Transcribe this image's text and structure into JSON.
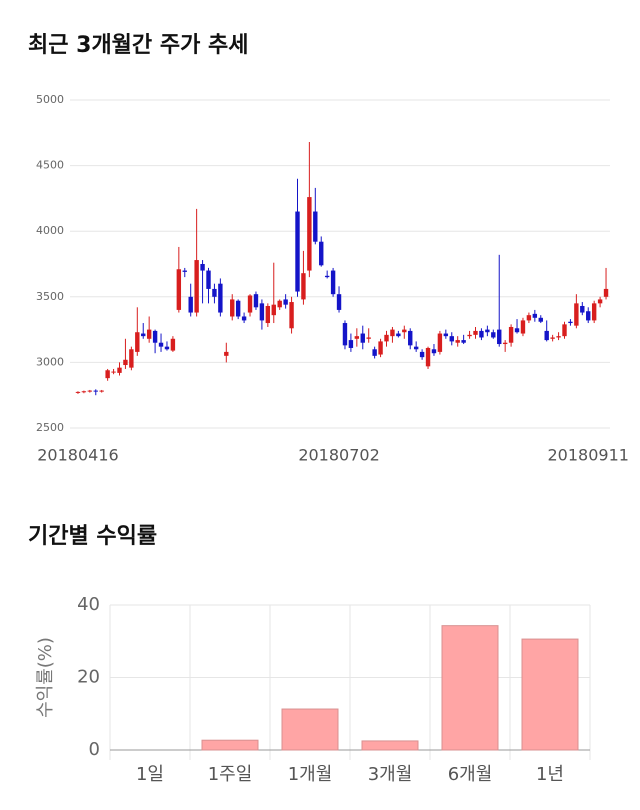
{
  "chart_data": [
    {
      "type": "candlestick",
      "title": "최근 3개월간 주가 추세",
      "up_color": "#d81e1e",
      "down_color": "#1414c8",
      "ylim": [
        2500,
        5000
      ],
      "yticks": [
        2500,
        3000,
        3500,
        4000,
        4500,
        5000
      ],
      "grid": true,
      "categories": [
        "20180416",
        null,
        null,
        null,
        null,
        null,
        null,
        null,
        null,
        null,
        null,
        null,
        null,
        null,
        null,
        null,
        null,
        null,
        null,
        null,
        null,
        null,
        null,
        null,
        null,
        null,
        null,
        null,
        null,
        null,
        null,
        null,
        null,
        null,
        null,
        null,
        null,
        null,
        null,
        null,
        null,
        null,
        null,
        null,
        "20180702",
        null,
        null,
        null,
        null,
        null,
        null,
        null,
        null,
        null,
        null,
        null,
        null,
        null,
        null,
        null,
        null,
        null,
        null,
        null,
        null,
        null,
        null,
        null,
        null,
        null,
        null,
        null,
        null,
        null,
        null,
        null,
        null,
        null,
        null,
        null,
        null,
        null,
        null,
        null,
        null,
        null,
        "20180911",
        null,
        null,
        null
      ],
      "candles": [
        [
          2770,
          2780,
          2760,
          2775
        ],
        [
          2775,
          2785,
          2765,
          2780
        ],
        [
          2780,
          2790,
          2770,
          2785
        ],
        [
          2785,
          2795,
          2750,
          2780
        ],
        [
          2780,
          2790,
          2770,
          2785
        ],
        [
          2880,
          2950,
          2860,
          2940
        ],
        [
          2930,
          2950,
          2910,
          2930
        ],
        [
          2920,
          3000,
          2900,
          2960
        ],
        [
          2980,
          3180,
          2950,
          3020
        ],
        [
          2960,
          3120,
          2940,
          3100
        ],
        [
          3080,
          3420,
          3050,
          3230
        ],
        [
          3220,
          3300,
          3180,
          3200
        ],
        [
          3180,
          3350,
          3150,
          3250
        ],
        [
          3240,
          3250,
          3070,
          3150
        ],
        [
          3150,
          3220,
          3080,
          3120
        ],
        [
          3120,
          3160,
          3090,
          3100
        ],
        [
          3090,
          3200,
          3080,
          3180
        ],
        [
          3400,
          3880,
          3380,
          3710
        ],
        [
          3700,
          3720,
          3650,
          3690
        ],
        [
          3500,
          3600,
          3350,
          3380
        ],
        [
          3380,
          4170,
          3350,
          3780
        ],
        [
          3750,
          3780,
          3450,
          3700
        ],
        [
          3700,
          3720,
          3450,
          3560
        ],
        [
          3560,
          3600,
          3450,
          3500
        ],
        [
          3600,
          3640,
          3350,
          3380
        ],
        [
          3050,
          3150,
          3000,
          3080
        ],
        [
          3350,
          3520,
          3320,
          3480
        ],
        [
          3470,
          3480,
          3330,
          3350
        ],
        [
          3350,
          3380,
          3300,
          3320
        ],
        [
          3380,
          3520,
          3350,
          3510
        ],
        [
          3520,
          3540,
          3400,
          3420
        ],
        [
          3450,
          3480,
          3250,
          3320
        ],
        [
          3300,
          3450,
          3270,
          3430
        ],
        [
          3360,
          3760,
          3300,
          3440
        ],
        [
          3420,
          3480,
          3400,
          3470
        ],
        [
          3480,
          3520,
          3410,
          3440
        ],
        [
          3260,
          3500,
          3220,
          3460
        ],
        [
          4150,
          4400,
          3500,
          3540
        ],
        [
          3480,
          3850,
          3440,
          3680
        ],
        [
          3700,
          4680,
          3650,
          4260
        ],
        [
          4150,
          4330,
          3900,
          3920
        ],
        [
          3920,
          3960,
          3730,
          3740
        ],
        [
          3660,
          3700,
          3640,
          3650
        ],
        [
          3700,
          3720,
          3500,
          3520
        ],
        [
          3520,
          3580,
          3380,
          3400
        ],
        [
          3300,
          3320,
          3100,
          3130
        ],
        [
          3170,
          3220,
          3080,
          3110
        ],
        [
          3180,
          3260,
          3120,
          3200
        ],
        [
          3220,
          3280,
          3100,
          3150
        ],
        [
          3180,
          3260,
          3150,
          3190
        ],
        [
          3100,
          3120,
          3030,
          3050
        ],
        [
          3060,
          3180,
          3040,
          3160
        ],
        [
          3160,
          3240,
          3120,
          3210
        ],
        [
          3200,
          3270,
          3150,
          3250
        ],
        [
          3220,
          3240,
          3190,
          3200
        ],
        [
          3230,
          3280,
          3180,
          3250
        ],
        [
          3240,
          3260,
          3100,
          3130
        ],
        [
          3120,
          3160,
          3080,
          3100
        ],
        [
          3080,
          3100,
          3020,
          3040
        ],
        [
          2970,
          3120,
          2950,
          3110
        ],
        [
          3100,
          3140,
          3050,
          3070
        ],
        [
          3080,
          3240,
          3060,
          3220
        ],
        [
          3220,
          3250,
          3180,
          3200
        ],
        [
          3200,
          3230,
          3130,
          3160
        ],
        [
          3150,
          3200,
          3120,
          3170
        ],
        [
          3170,
          3210,
          3140,
          3150
        ],
        [
          3200,
          3240,
          3180,
          3210
        ],
        [
          3210,
          3270,
          3180,
          3240
        ],
        [
          3240,
          3260,
          3170,
          3190
        ],
        [
          3250,
          3280,
          3200,
          3230
        ],
        [
          3230,
          3250,
          3180,
          3190
        ],
        [
          3250,
          3820,
          3120,
          3140
        ],
        [
          3140,
          3170,
          3080,
          3150
        ],
        [
          3150,
          3290,
          3120,
          3270
        ],
        [
          3260,
          3330,
          3220,
          3230
        ],
        [
          3220,
          3340,
          3200,
          3320
        ],
        [
          3320,
          3380,
          3300,
          3360
        ],
        [
          3370,
          3400,
          3310,
          3340
        ],
        [
          3340,
          3360,
          3300,
          3310
        ],
        [
          3240,
          3320,
          3160,
          3170
        ],
        [
          3180,
          3210,
          3160,
          3190
        ],
        [
          3190,
          3230,
          3170,
          3200
        ],
        [
          3200,
          3310,
          3180,
          3290
        ],
        [
          3310,
          3330,
          3280,
          3300
        ],
        [
          3280,
          3520,
          3260,
          3450
        ],
        [
          3430,
          3460,
          3360,
          3380
        ],
        [
          3390,
          3420,
          3300,
          3320
        ],
        [
          3320,
          3470,
          3300,
          3450
        ],
        [
          3450,
          3500,
          3420,
          3480
        ],
        [
          3500,
          3720,
          3480,
          3560
        ]
      ]
    },
    {
      "type": "bar",
      "title": "기간별 수익률",
      "y_label": "수익률(%)",
      "color": "#ffa5a5",
      "edge_color": "#d89090",
      "categories": [
        "1일",
        "1주일",
        "1개월",
        "3개월",
        "6개월",
        "1년"
      ],
      "values": [
        0,
        2.7,
        11.3,
        2.5,
        34.3,
        30.6
      ],
      "ylim": [
        0,
        40
      ],
      "yticks": [
        0,
        20,
        40
      ],
      "grid": true
    }
  ]
}
